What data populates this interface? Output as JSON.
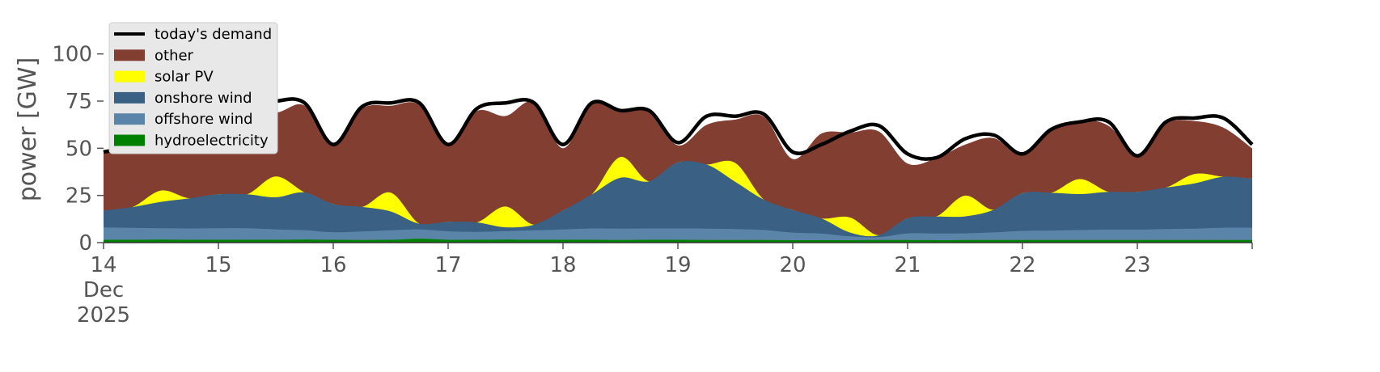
{
  "chart_data": {
    "type": "area",
    "title": "",
    "xlabel": "",
    "ylabel": "power [GW]",
    "ylim": [
      0,
      120
    ],
    "xlim": [
      "2025-12-14T00:00",
      "2025-12-24T00:00"
    ],
    "yticks": [
      "0",
      "25",
      "50",
      "75",
      "100"
    ],
    "ytick_values": [
      0,
      25,
      50,
      75,
      100
    ],
    "xticks": [
      {
        "date": "2025-12-14",
        "lines": [
          "14",
          "Dec",
          "2025"
        ]
      },
      {
        "date": "2025-12-15",
        "lines": [
          "15"
        ]
      },
      {
        "date": "2025-12-16",
        "lines": [
          "16"
        ]
      },
      {
        "date": "2025-12-17",
        "lines": [
          "17"
        ]
      },
      {
        "date": "2025-12-18",
        "lines": [
          "18"
        ]
      },
      {
        "date": "2025-12-19",
        "lines": [
          "19"
        ]
      },
      {
        "date": "2025-12-20",
        "lines": [
          "20"
        ]
      },
      {
        "date": "2025-12-21",
        "lines": [
          "21"
        ]
      },
      {
        "date": "2025-12-22",
        "lines": [
          "22"
        ]
      },
      {
        "date": "2025-12-23",
        "lines": [
          "23"
        ]
      }
    ],
    "legend_position": "top-left",
    "grid": false,
    "stack_order": [
      "hydroelectricity",
      "offshore wind",
      "onshore wind",
      "solar PV",
      "other"
    ],
    "x": [
      "2025-12-14T00:00",
      "2025-12-14T06:00",
      "2025-12-14T12:00",
      "2025-12-14T18:00",
      "2025-12-15T00:00",
      "2025-12-15T06:00",
      "2025-12-15T12:00",
      "2025-12-15T18:00",
      "2025-12-16T00:00",
      "2025-12-16T06:00",
      "2025-12-16T12:00",
      "2025-12-16T18:00",
      "2025-12-17T00:00",
      "2025-12-17T06:00",
      "2025-12-17T12:00",
      "2025-12-17T18:00",
      "2025-12-18T00:00",
      "2025-12-18T06:00",
      "2025-12-18T12:00",
      "2025-12-18T18:00",
      "2025-12-19T00:00",
      "2025-12-19T06:00",
      "2025-12-19T12:00",
      "2025-12-19T18:00",
      "2025-12-20T00:00",
      "2025-12-20T06:00",
      "2025-12-20T12:00",
      "2025-12-20T18:00",
      "2025-12-21T00:00",
      "2025-12-21T06:00",
      "2025-12-21T12:00",
      "2025-12-21T18:00",
      "2025-12-22T00:00",
      "2025-12-22T06:00",
      "2025-12-22T12:00",
      "2025-12-22T18:00",
      "2025-12-23T00:00",
      "2025-12-23T06:00",
      "2025-12-23T12:00",
      "2025-12-23T18:00",
      "2025-12-24T00:00"
    ],
    "series": [
      {
        "name": "hydroelectricity",
        "color": "#008000",
        "values": [
          1.5,
          1.5,
          1.6,
          1.5,
          1.5,
          1.5,
          1.5,
          1.6,
          1.5,
          1.4,
          1.5,
          2.0,
          1.5,
          1.5,
          1.6,
          1.5,
          1.5,
          1.5,
          1.4,
          1.5,
          1.5,
          1.4,
          1.4,
          1.4,
          1.3,
          1.3,
          1.3,
          1.4,
          1.4,
          1.3,
          1.4,
          1.4,
          1.4,
          1.4,
          1.4,
          1.4,
          1.4,
          1.4,
          1.4,
          1.4,
          1.4
        ]
      },
      {
        "name": "offshore wind",
        "color": "#5b84a9",
        "values": [
          6.5,
          6.3,
          6.0,
          6.0,
          6.1,
          6.1,
          5.5,
          5.0,
          4.0,
          4.5,
          5.0,
          5.0,
          4.5,
          4.2,
          4.5,
          5.0,
          5.5,
          6.0,
          6.0,
          6.0,
          6.0,
          6.0,
          5.8,
          5.3,
          4.0,
          3.5,
          2.0,
          1.5,
          3.5,
          3.5,
          3.5,
          4.0,
          4.8,
          5.0,
          5.3,
          5.5,
          5.5,
          5.8,
          6.0,
          6.5,
          6.5
        ]
      },
      {
        "name": "onshore wind",
        "color": "#3a6083",
        "values": [
          9,
          11,
          14,
          16,
          18,
          18,
          17,
          20,
          15,
          13,
          10,
          3,
          5,
          5,
          2,
          3,
          10,
          18,
          27,
          25,
          35,
          34,
          25,
          16,
          12,
          8,
          2,
          1,
          8,
          9,
          9,
          12,
          20,
          20,
          19,
          20,
          20,
          22,
          24,
          27,
          26
        ]
      },
      {
        "name": "solar PV",
        "color": "#ffff00",
        "values": [
          0,
          0,
          6,
          0,
          0,
          0,
          11,
          0,
          0,
          0,
          10,
          0,
          0,
          0,
          11,
          0,
          0,
          0,
          11,
          0,
          0,
          0,
          10,
          0,
          0,
          0,
          8,
          0,
          0,
          0,
          11,
          0,
          0,
          0,
          8,
          0,
          0,
          0,
          5,
          0,
          0
        ]
      },
      {
        "name": "other",
        "color": "#823f31",
        "values": [
          31,
          33,
          37,
          42,
          28,
          48,
          34,
          46,
          31,
          52,
          46,
          63,
          41,
          59,
          48,
          65,
          33,
          48,
          25,
          37,
          9,
          21,
          23,
          44,
          27,
          45,
          45,
          55,
          29,
          31,
          27,
          38,
          20,
          33,
          31,
          35,
          20,
          34,
          28,
          26,
          16
        ]
      }
    ],
    "demand": {
      "name": "today's demand",
      "color": "#000000",
      "values": [
        48,
        52,
        64,
        65,
        51,
        72,
        75,
        74,
        52,
        72,
        74,
        74,
        52,
        71,
        74,
        74,
        52,
        74,
        70,
        70,
        53,
        67,
        67,
        68,
        48,
        52,
        59,
        62,
        47,
        45,
        55,
        57,
        47,
        60,
        64,
        64,
        46,
        64,
        66,
        66,
        52
      ]
    }
  }
}
